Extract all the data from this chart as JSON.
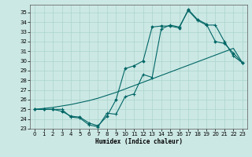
{
  "xlabel": "Humidex (Indice chaleur)",
  "bg_color": "#cce8e4",
  "grid_color": "#aad4cc",
  "line_color": "#006666",
  "xlim": [
    -0.5,
    23.5
  ],
  "ylim": [
    23,
    35.8
  ],
  "xticks": [
    0,
    1,
    2,
    3,
    4,
    5,
    6,
    7,
    8,
    9,
    10,
    11,
    12,
    13,
    14,
    15,
    16,
    17,
    18,
    19,
    20,
    21,
    22,
    23
  ],
  "yticks": [
    23,
    24,
    25,
    26,
    27,
    28,
    29,
    30,
    31,
    32,
    33,
    34,
    35
  ],
  "line1_x": [
    0,
    1,
    2,
    3,
    4,
    5,
    6,
    7,
    8,
    9,
    10,
    11,
    12,
    13,
    14,
    15,
    16,
    17,
    18,
    19,
    20,
    21,
    22,
    23
  ],
  "line1_y": [
    25.0,
    25.1,
    25.2,
    25.35,
    25.5,
    25.7,
    25.9,
    26.15,
    26.45,
    26.75,
    27.1,
    27.45,
    27.8,
    28.15,
    28.5,
    28.85,
    29.2,
    29.55,
    29.9,
    30.25,
    30.6,
    30.95,
    31.3,
    29.8
  ],
  "line2_x": [
    0,
    1,
    2,
    3,
    4,
    5,
    6,
    7,
    8,
    9,
    10,
    11,
    12,
    13,
    14,
    15,
    16,
    17,
    18,
    19,
    20,
    21,
    22,
    23
  ],
  "line2_y": [
    25.0,
    25.0,
    25.0,
    24.8,
    24.3,
    24.2,
    23.6,
    23.3,
    24.3,
    26.0,
    29.2,
    29.5,
    30.0,
    33.5,
    33.6,
    33.6,
    33.4,
    35.3,
    34.3,
    33.8,
    32.0,
    31.8,
    30.8,
    29.8
  ],
  "line3_x": [
    0,
    1,
    2,
    3,
    4,
    5,
    6,
    7,
    8,
    9,
    10,
    11,
    12,
    13,
    14,
    15,
    16,
    17,
    18,
    19,
    20,
    21,
    22,
    23
  ],
  "line3_y": [
    25.0,
    25.0,
    25.0,
    25.0,
    24.2,
    24.1,
    23.4,
    23.2,
    24.6,
    24.5,
    26.3,
    26.6,
    28.6,
    28.3,
    33.3,
    33.7,
    33.5,
    35.2,
    34.2,
    33.7,
    33.7,
    32.0,
    30.5,
    29.8
  ]
}
